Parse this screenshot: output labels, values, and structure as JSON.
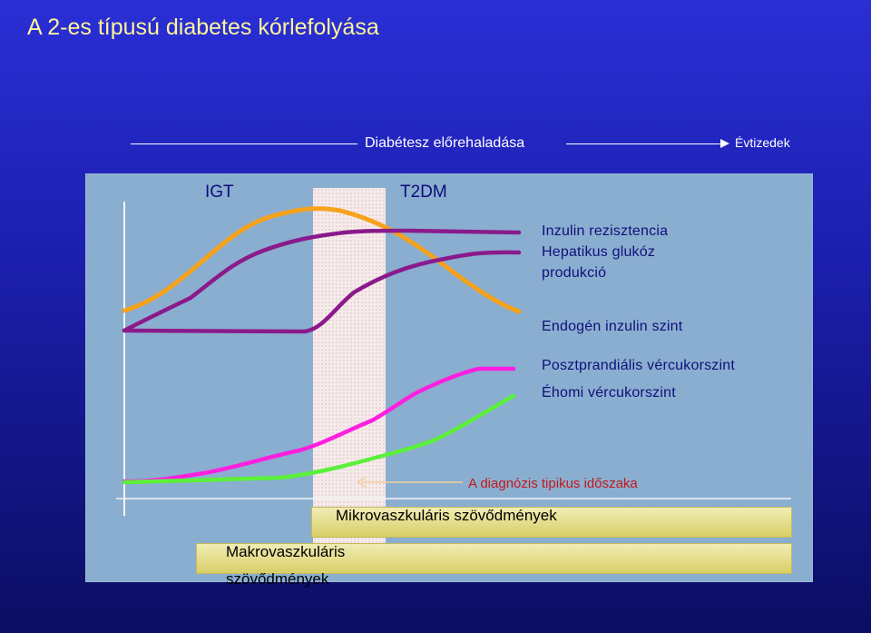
{
  "title": "A 2-es típusú diabetes kórlefolyása",
  "timeline": {
    "progress_label": "Diabétesz előrehaladása",
    "decades_label": "Évtizedek"
  },
  "phases": {
    "igt": "IGT",
    "t2dm": "T2DM"
  },
  "curve_labels": {
    "insulin_resistance": "Inzulin rezisztencia",
    "hepatic_glucose_line1": "Hepatikus glukóz",
    "hepatic_glucose_line2": "produkció",
    "endogenous_insulin": "Endogén inzulin szint",
    "postprandial_glucose": "Posztprandiális vércukorszint",
    "fasting_glucose": "Éhomi vércukorszint"
  },
  "diagnosis_label": "A diagnózis tipikus időszaka",
  "complications": {
    "micro": "Mikrovaszkuláris szövődmények",
    "macro_line1": "Makrovaszkuláris",
    "macro_line2": "szövődmények"
  },
  "colors": {
    "background": "#1c1fae",
    "title": "#fdf39a",
    "panel": "#8aaed0",
    "endogenous_insulin_curve": "#f7a21b",
    "insulin_resistance_curve": "#8a1a8c",
    "hepatic_glucose_curve": "#8a1a8c",
    "postprandial_curve": "#ff1fe0",
    "fasting_curve": "#5cf03a",
    "diagnosis_text": "#c2181c"
  }
}
